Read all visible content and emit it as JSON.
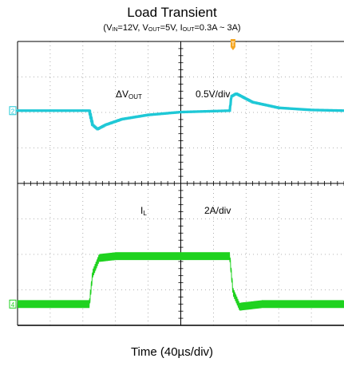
{
  "chart_data": {
    "type": "line",
    "title": "Load Transient",
    "subtitle": {
      "vin_label": "V",
      "vin_sub": "IN",
      "vin_value": "=12V, ",
      "vout_label": "V",
      "vout_sub": "OUT",
      "vout_value": "=5V, ",
      "iout_label": "I",
      "iout_sub": "OUT",
      "iout_value": "=0.3A ~ 3A)"
    },
    "xlabel": "Time (40µs/div)",
    "x_divisions": 10,
    "y_divisions": 8,
    "grid": true,
    "trigger_marker": "T",
    "series": [
      {
        "label_main": "ΔV",
        "label_sub": "OUT",
        "scale": "0.5V/div",
        "channel": "2",
        "color": "#1ec8d6",
        "unit": "V",
        "x": [
          0,
          2.2,
          2.3,
          2.45,
          2.7,
          3.2,
          4.0,
          5.0,
          6.5,
          6.55,
          6.7,
          7.2,
          8.0,
          9.0,
          10.0
        ],
        "values": [
          0,
          0,
          -0.2,
          -0.26,
          -0.2,
          -0.12,
          -0.06,
          -0.02,
          0,
          0.2,
          0.24,
          0.12,
          0.04,
          0.01,
          0
        ]
      },
      {
        "label_main": "I",
        "label_sub": "L",
        "scale": "2A/div",
        "channel": "4",
        "color": "#1fd21f",
        "unit": "A",
        "x": [
          0,
          2.2,
          2.3,
          2.5,
          3.0,
          6.5,
          6.6,
          6.8,
          7.5,
          10.0
        ],
        "values": [
          0.3,
          0.3,
          2.0,
          2.9,
          3.0,
          3.0,
          1.0,
          0.15,
          0.3,
          0.3
        ],
        "ripple_pp": 0.4
      }
    ]
  }
}
